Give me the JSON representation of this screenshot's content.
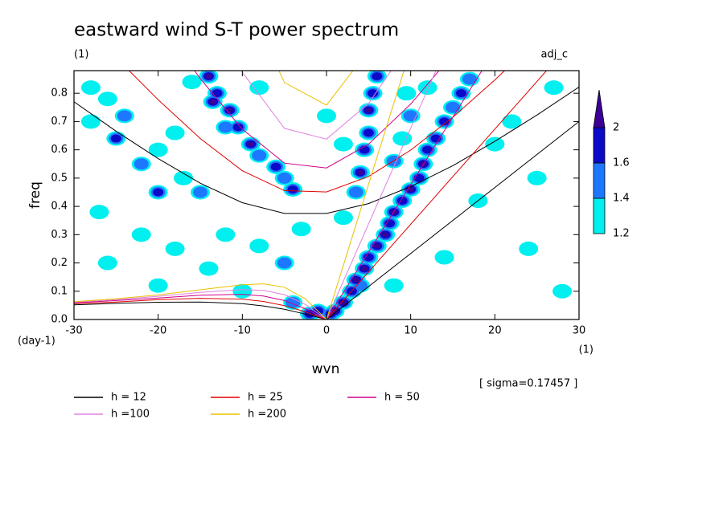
{
  "chart_data": {
    "type": "spectrum",
    "title": "eastward wind S-T power spectrum",
    "subtitle": "(1)",
    "tag": "adj_c",
    "ylabel": "freq",
    "yunit": "(day-1)",
    "xlabel": "wvn",
    "xunit": "(1)",
    "annotation": "[ sigma=0.17457 ]",
    "xlim": [
      -30,
      30
    ],
    "ylim": [
      0,
      0.88
    ],
    "xticks": [
      -30,
      -20,
      -10,
      0,
      10,
      20,
      30
    ],
    "yticks": [
      {
        "value": 0,
        "label": "0.0"
      },
      {
        "value": 0.1,
        "label": "0.1"
      },
      {
        "value": 0.2,
        "label": "0.2"
      },
      {
        "value": 0.3,
        "label": "0.3"
      },
      {
        "value": 0.4,
        "label": "0.4"
      },
      {
        "value": 0.5,
        "label": "0.5"
      },
      {
        "value": 0.6,
        "label": "0.6"
      },
      {
        "value": 0.7,
        "label": "0.7"
      },
      {
        "value": 0.8,
        "label": "0.8"
      }
    ],
    "colorbar": {
      "levels": [
        1.2,
        1.4,
        1.6,
        2
      ],
      "colors": [
        "#00f0f0",
        "#1e78ff",
        "#0a0ac8",
        "#3c0096"
      ]
    },
    "spectrum": {
      "x": [
        1,
        2,
        3,
        3.5,
        4.5,
        5,
        6,
        7,
        7.5,
        8,
        9,
        10,
        11,
        11.5,
        12,
        13,
        14,
        15,
        16,
        17,
        -1,
        0.5,
        4,
        4.5,
        5,
        5,
        5.5,
        6,
        3.5,
        -14,
        -13,
        -11.5,
        -10.5,
        -9,
        -8,
        -6,
        -5,
        -4,
        -12,
        -13.5,
        -28,
        -25,
        -22,
        -20,
        -18,
        -17,
        -20,
        -15,
        -26,
        -27,
        -22,
        -18,
        -12,
        -8,
        -5,
        -3,
        -26,
        -14,
        -20,
        -10,
        -4,
        -2,
        -16,
        -8,
        0,
        2,
        2,
        8,
        9,
        10,
        9.5,
        14,
        18,
        20,
        22,
        25,
        27,
        12,
        4,
        8,
        24,
        28,
        -28,
        -24
      ],
      "y": [
        0.03,
        0.06,
        0.1,
        0.14,
        0.18,
        0.22,
        0.26,
        0.3,
        0.34,
        0.38,
        0.42,
        0.46,
        0.5,
        0.55,
        0.6,
        0.64,
        0.7,
        0.75,
        0.8,
        0.85,
        0.03,
        0.02,
        0.52,
        0.6,
        0.66,
        0.74,
        0.8,
        0.86,
        0.45,
        0.86,
        0.8,
        0.74,
        0.68,
        0.62,
        0.58,
        0.54,
        0.5,
        0.46,
        0.68,
        0.77,
        0.7,
        0.64,
        0.55,
        0.6,
        0.66,
        0.5,
        0.45,
        0.45,
        0.78,
        0.38,
        0.3,
        0.25,
        0.3,
        0.26,
        0.2,
        0.32,
        0.2,
        0.18,
        0.12,
        0.1,
        0.06,
        0.02,
        0.84,
        0.82,
        0.72,
        0.62,
        0.36,
        0.56,
        0.64,
        0.72,
        0.8,
        0.22,
        0.42,
        0.62,
        0.7,
        0.5,
        0.82,
        0.82,
        0.12,
        0.12,
        0.25,
        0.1,
        0.82,
        0.72
      ],
      "level": [
        2,
        2,
        1.6,
        2,
        2,
        1.6,
        2,
        2,
        1.6,
        2,
        1.6,
        2,
        1.6,
        2,
        1.6,
        1.6,
        1.6,
        1.4,
        1.6,
        1.4,
        1.6,
        2,
        2,
        1.6,
        1.6,
        2,
        1.6,
        1.6,
        1.4,
        2,
        1.6,
        2,
        1.6,
        2,
        1.4,
        1.6,
        1.4,
        1.6,
        1.4,
        2,
        1.2,
        1.6,
        1.4,
        1.2,
        1.2,
        1.2,
        1.6,
        1.4,
        1.2,
        1.2,
        1.2,
        1.2,
        1.2,
        1.2,
        1.4,
        1.2,
        1.2,
        1.2,
        1.2,
        1.2,
        1.4,
        1.6,
        1.2,
        1.2,
        1.2,
        1.2,
        1.2,
        1.4,
        1.2,
        1.4,
        1.2,
        1.2,
        1.2,
        1.2,
        1.2,
        1.2,
        1.2,
        1.2,
        1.4,
        1.2,
        1.2,
        1.2,
        1.2,
        1.4
      ]
    },
    "kelvin_x": [
      0,
      30
    ],
    "ig_x": [
      -30,
      -25,
      -20,
      -15,
      -10,
      -5,
      0,
      5,
      10,
      15,
      20,
      25,
      30
    ],
    "rossby_x": [
      -30,
      -25,
      -20,
      -15,
      -10,
      -7.5,
      -5,
      -2.5,
      0
    ],
    "series": [
      {
        "name": "h = 12",
        "color": "#000000",
        "kelvin": [
          0,
          0.7
        ],
        "ig": [
          0.77,
          0.666,
          0.569,
          0.482,
          0.413,
          0.375,
          0.375,
          0.41,
          0.47,
          0.544,
          0.63,
          0.723,
          0.822
        ],
        "rossby": [
          0.052,
          0.057,
          0.061,
          0.062,
          0.056,
          0.048,
          0.036,
          0.019,
          0
        ]
      },
      {
        "name": "h = 25",
        "color": "#e00000",
        "kelvin": [
          0,
          1.01
        ],
        "ig": [
          1.081,
          0.926,
          0.777,
          0.64,
          0.526,
          0.456,
          0.451,
          0.506,
          0.599,
          0.715,
          0.847,
          0.988,
          1.137
        ],
        "rossby": [
          0.056,
          0.062,
          0.07,
          0.075,
          0.072,
          0.064,
          0.049,
          0.027,
          0
        ]
      },
      {
        "name": "h = 50",
        "color": "#d0008c",
        "kelvin": [
          0,
          1.43
        ],
        "ig": [
          1.502,
          1.277,
          1.058,
          0.852,
          0.673,
          0.553,
          0.536,
          0.62,
          0.762,
          0.937,
          1.134,
          1.343,
          1.561
        ],
        "rossby": [
          0.059,
          0.067,
          0.076,
          0.086,
          0.089,
          0.083,
          0.067,
          0.038,
          0
        ]
      },
      {
        "name": "h =100",
        "color": "#e080e0",
        "kelvin": [
          0,
          2.03
        ],
        "ig": [
          2.095,
          1.771,
          1.453,
          1.149,
          0.875,
          0.676,
          0.638,
          0.764,
          0.981,
          1.245,
          1.535,
          1.841,
          2.156
        ],
        "rossby": [
          0.061,
          0.07,
          0.082,
          0.096,
          0.106,
          0.103,
          0.088,
          0.053,
          0
        ]
      },
      {
        "name": "h =200",
        "color": "#e8c000",
        "kelvin": [
          0,
          2.87
        ],
        "ig": [
          2.935,
          2.471,
          2.013,
          1.57,
          1.157,
          0.838,
          0.758,
          0.952,
          1.28,
          1.674,
          2.1,
          2.544,
          2.997
        ],
        "rossby": [
          0.063,
          0.073,
          0.087,
          0.105,
          0.123,
          0.126,
          0.114,
          0.073,
          0
        ]
      }
    ]
  }
}
